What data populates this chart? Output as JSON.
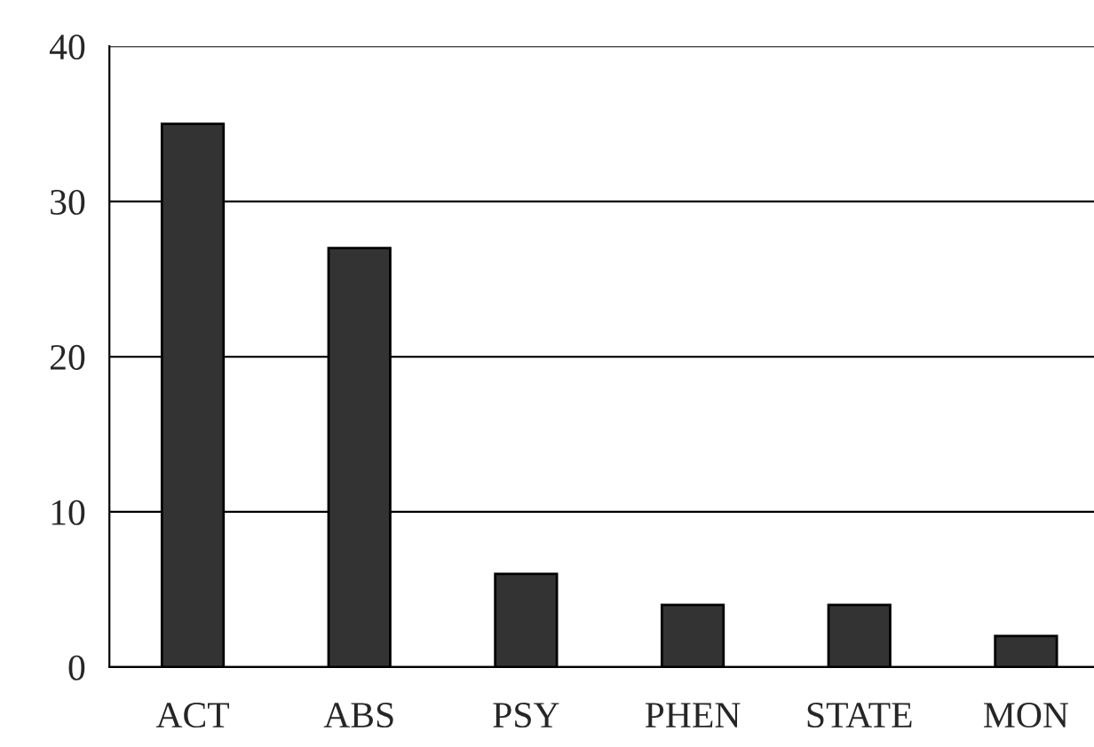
{
  "chart_data": {
    "type": "bar",
    "categories": [
      "ACT",
      "ABS",
      "PSY",
      "PHEN",
      "STATE",
      "MON"
    ],
    "values": [
      35,
      27,
      6,
      4,
      4,
      2
    ],
    "color": "#333333",
    "ylim": [
      0,
      40
    ],
    "yticks": [
      0,
      10,
      20,
      30,
      40
    ],
    "grid": "y"
  }
}
